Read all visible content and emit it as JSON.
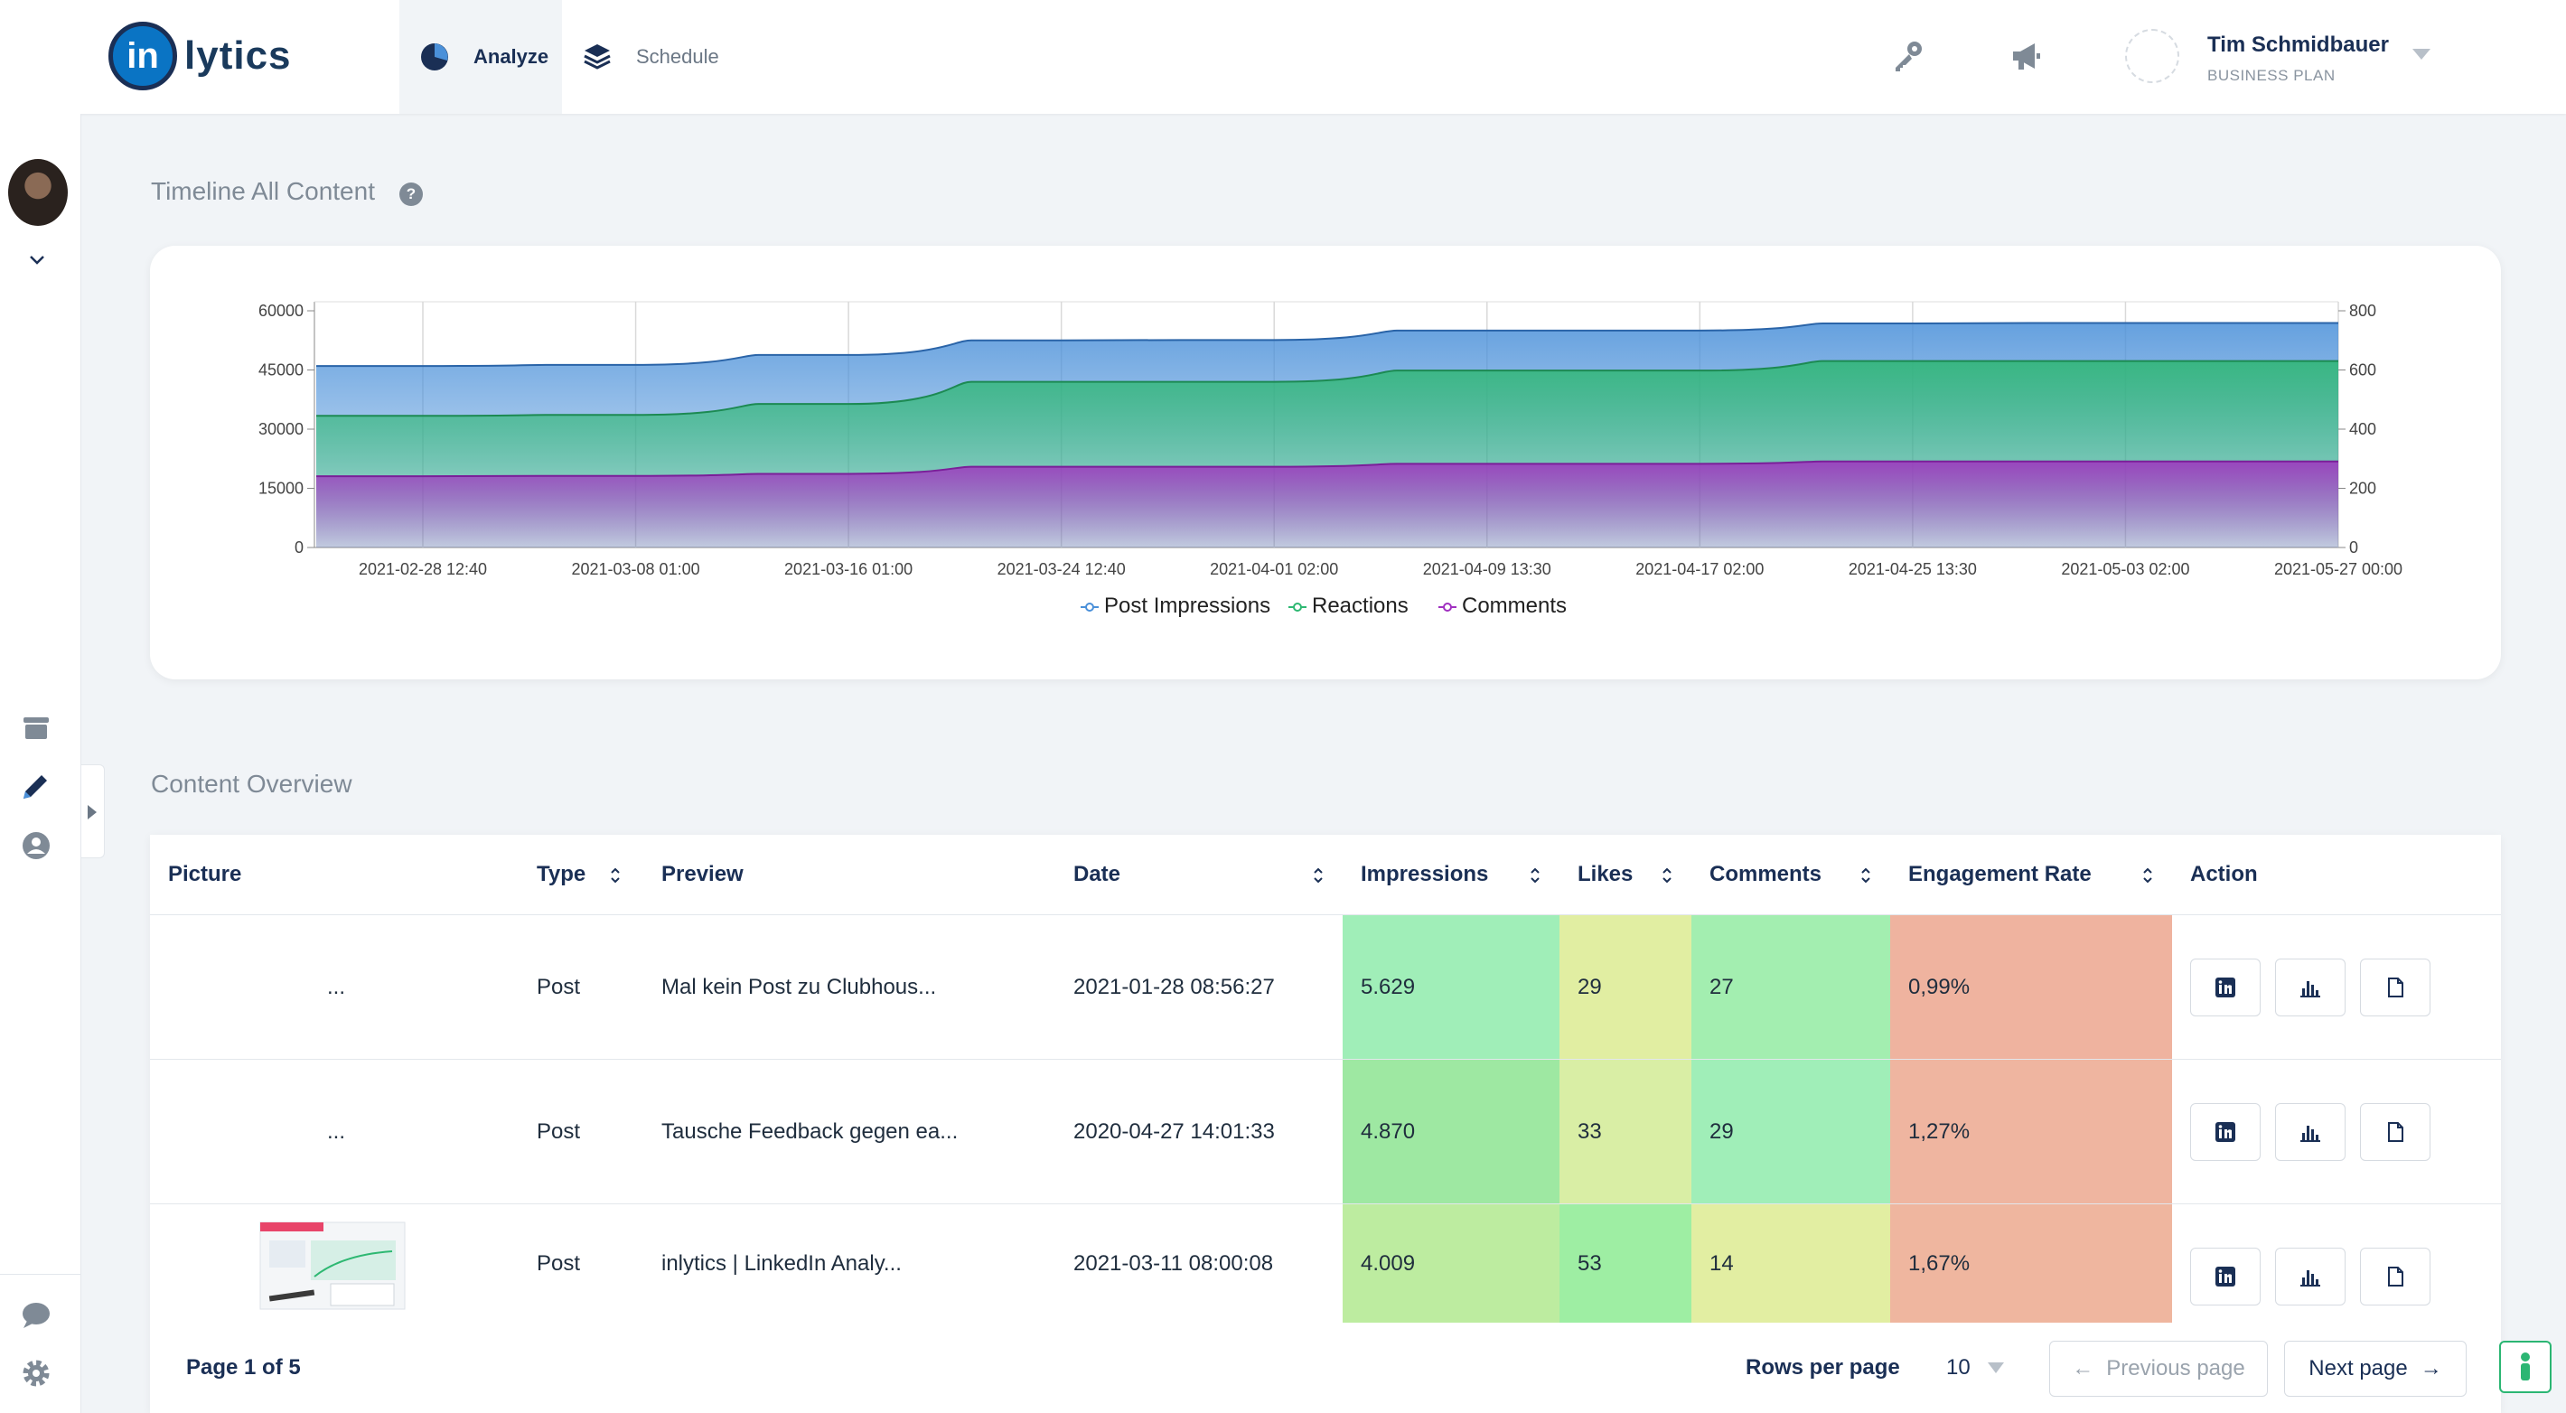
{
  "app": {
    "logo_mark": "in",
    "logo_text": "lytics"
  },
  "nav": {
    "tabs": [
      {
        "label": "Analyze",
        "icon": "pie-chart-icon",
        "active": true
      },
      {
        "label": "Schedule",
        "icon": "layers-icon",
        "active": false
      }
    ]
  },
  "header_icons": [
    "key-icon",
    "megaphone-icon"
  ],
  "user": {
    "name": "Tim Schmidbauer",
    "plan": "BUSINESS PLAN"
  },
  "sidebar": {
    "icons": [
      "archive-icon",
      "pencil-icon",
      "user-circle-icon",
      "chat-icon",
      "gear-icon"
    ]
  },
  "timeline": {
    "title": "Timeline All Content",
    "help": "?"
  },
  "chart_data": {
    "type": "area",
    "title": "Timeline All Content",
    "x": [
      "2021-02-28 12:40",
      "2021-03-08 01:00",
      "2021-03-16 01:00",
      "2021-03-24 12:40",
      "2021-04-01 02:00",
      "2021-04-09 13:30",
      "2021-04-17 02:00",
      "2021-04-25 13:30",
      "2021-05-03 02:00",
      "2021-05-27 00:00"
    ],
    "left_axis": {
      "ticks": [
        0,
        15000,
        30000,
        45000,
        60000
      ],
      "range": [
        0,
        60000
      ]
    },
    "right_axis": {
      "ticks": [
        0,
        200,
        400,
        600,
        800
      ],
      "range": [
        0,
        800
      ]
    },
    "series": [
      {
        "name": "Post Impressions",
        "axis": "left",
        "color": "#4a90d9",
        "values": [
          46000,
          46300,
          48800,
          52500,
          52600,
          55000,
          55000,
          56800,
          56900,
          56900
        ]
      },
      {
        "name": "Reactions",
        "axis": "right",
        "color": "#2eb872",
        "values": [
          445,
          448,
          485,
          560,
          560,
          598,
          598,
          630,
          630,
          630
        ]
      },
      {
        "name": "Comments",
        "axis": "right",
        "color": "#a030c0",
        "values": [
          241,
          242,
          249,
          273,
          273,
          283,
          283,
          291,
          291,
          291
        ]
      }
    ],
    "legend_position": "bottom-center",
    "grid": true
  },
  "overview": {
    "title": "Content Overview",
    "columns": [
      "Picture",
      "Type",
      "Preview",
      "Date",
      "Impressions",
      "Likes",
      "Comments",
      "Engagement Rate",
      "Action"
    ],
    "rows": [
      {
        "picture": "...",
        "type": "Post",
        "preview": "Mal kein Post zu Clubhous...",
        "date": "2021-01-28 08:56:27",
        "impressions": "5.629",
        "likes": "29",
        "comments": "27",
        "engagement": "0,99%",
        "colors": {
          "impressions": "#a0eeb8",
          "likes": "#e1eea2",
          "comments": "#a3eeb0",
          "engagement": "#efb39f"
        }
      },
      {
        "picture": "...",
        "type": "Post",
        "preview": "Tausche Feedback gegen ea...",
        "date": "2020-04-27 14:01:33",
        "impressions": "4.870",
        "likes": "33",
        "comments": "29",
        "engagement": "1,27%",
        "colors": {
          "impressions": "#9ee8a2",
          "likes": "#d9eea5",
          "comments": "#a0eeb8",
          "engagement": "#efb5a0"
        }
      },
      {
        "picture": "",
        "type": "Post",
        "preview": "inlytics | LinkedIn Analy...",
        "date": "2021-03-11 08:00:08",
        "impressions": "4.009",
        "likes": "53",
        "comments": "14",
        "engagement": "1,67%",
        "colors": {
          "impressions": "#bdeca0",
          "likes": "#9eeea3",
          "comments": "#e2eea2",
          "engagement": "#efb69f"
        }
      }
    ],
    "actions": [
      "linkedin-icon",
      "bar-chart-icon",
      "document-icon"
    ],
    "pager": {
      "page_label": "Page 1 of 5",
      "rows_label": "Rows per page",
      "rows_value": "10",
      "prev_label": "Previous page",
      "next_label": "Next page"
    }
  }
}
